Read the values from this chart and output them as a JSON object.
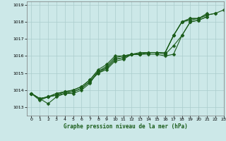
{
  "title": "Graphe pression niveau de la mer (hPa)",
  "background_color": "#cce8e8",
  "grid_color": "#aacccc",
  "line_color": "#1a5c1a",
  "xlim": [
    -0.5,
    23
  ],
  "ylim": [
    1012.5,
    1019.2
  ],
  "yticks": [
    1013,
    1014,
    1015,
    1016,
    1017,
    1018,
    1019
  ],
  "xticks": [
    0,
    1,
    2,
    3,
    4,
    5,
    6,
    7,
    8,
    9,
    10,
    11,
    12,
    13,
    14,
    15,
    16,
    17,
    18,
    19,
    20,
    21,
    22,
    23
  ],
  "series": [
    {
      "x": [
        0,
        1,
        2,
        3,
        4,
        5,
        6,
        7,
        8,
        9,
        10,
        11,
        12,
        13,
        14,
        15,
        16,
        17,
        18,
        19,
        20,
        21
      ],
      "y": [
        1013.8,
        1013.5,
        1013.2,
        1013.6,
        1013.8,
        1013.8,
        1014.0,
        1014.4,
        1015.1,
        1015.3,
        1015.8,
        1015.9,
        1016.1,
        1016.1,
        1016.1,
        1016.1,
        1016.0,
        1016.1,
        1017.2,
        1018.0,
        1018.1,
        1018.3
      ],
      "marker": "D",
      "markersize": 2.5,
      "linewidth": 0.8
    },
    {
      "x": [
        0,
        1,
        2,
        3,
        4,
        5,
        6,
        7,
        8,
        9,
        10,
        11,
        12,
        13,
        14,
        15,
        16,
        17,
        18,
        19,
        20,
        21
      ],
      "y": [
        1013.8,
        1013.5,
        1013.6,
        1013.7,
        1013.8,
        1013.9,
        1014.1,
        1014.5,
        1015.0,
        1015.2,
        1015.7,
        1015.8,
        1016.1,
        1016.1,
        1016.2,
        1016.2,
        1016.1,
        1016.6,
        1017.2,
        1018.0,
        1018.1,
        1018.3
      ],
      "marker": "D",
      "markersize": 2.5,
      "linewidth": 0.8
    },
    {
      "x": [
        0,
        1,
        2,
        3,
        4,
        5,
        6,
        7,
        8,
        9,
        10,
        11,
        12,
        13,
        14,
        15,
        16,
        17,
        18,
        19,
        20,
        21
      ],
      "y": [
        1013.8,
        1013.4,
        1013.6,
        1013.7,
        1013.9,
        1013.9,
        1014.1,
        1014.5,
        1015.0,
        1015.3,
        1015.8,
        1015.9,
        1016.1,
        1016.1,
        1016.2,
        1016.2,
        1016.2,
        1017.2,
        1018.0,
        1018.1,
        1018.2,
        1018.5
      ],
      "marker": "D",
      "markersize": 2.5,
      "linewidth": 0.8
    },
    {
      "x": [
        0,
        1,
        2,
        3,
        4,
        5,
        6,
        7,
        8,
        9,
        10,
        11,
        12,
        13,
        14,
        15,
        16,
        17,
        18,
        19,
        20,
        21,
        22
      ],
      "y": [
        1013.8,
        1013.5,
        1013.6,
        1013.8,
        1013.9,
        1014.0,
        1014.2,
        1014.6,
        1015.1,
        1015.4,
        1015.9,
        1016.0,
        1016.1,
        1016.1,
        1016.2,
        1016.2,
        1016.2,
        1017.2,
        1018.0,
        1018.2,
        1018.2,
        1018.4,
        1018.5
      ],
      "marker": "D",
      "markersize": 2.5,
      "linewidth": 0.8
    },
    {
      "x": [
        0,
        1,
        2,
        3,
        4,
        5,
        6,
        7,
        8,
        9,
        10,
        11,
        12,
        13,
        14,
        15,
        16,
        17,
        18,
        19,
        20,
        21,
        22,
        23
      ],
      "y": [
        1013.8,
        1013.5,
        1013.6,
        1013.8,
        1013.9,
        1014.0,
        1014.2,
        1014.6,
        1015.2,
        1015.5,
        1016.0,
        1016.0,
        1016.1,
        1016.2,
        1016.2,
        1016.2,
        1016.2,
        1017.2,
        1018.0,
        1018.2,
        1018.2,
        1018.4,
        1018.5,
        1018.7
      ],
      "marker": "D",
      "markersize": 2.5,
      "linewidth": 0.8
    }
  ]
}
